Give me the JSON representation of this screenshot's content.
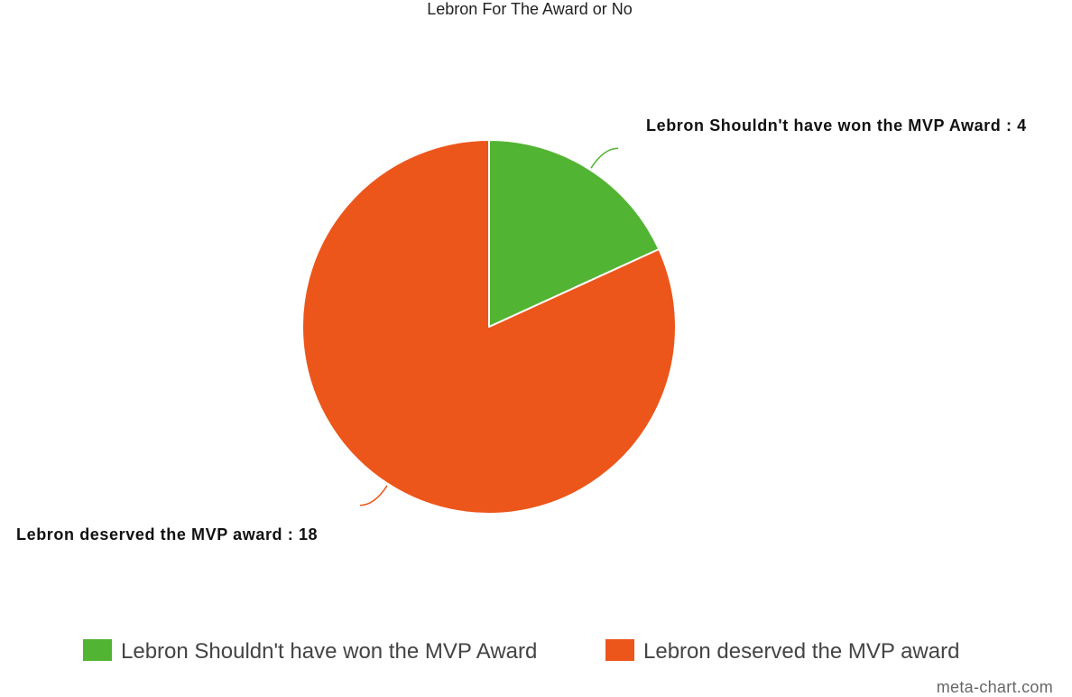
{
  "chart_data": {
    "type": "pie",
    "title": "Lebron For The Award or No",
    "slices": [
      {
        "name": "Lebron Shouldn't have won the MVP Award",
        "value": 4,
        "color": "#52b433",
        "data_label": "Lebron Shouldn't have won the MVP Award : 4"
      },
      {
        "name": "Lebron deserved the MVP award",
        "value": 18,
        "color": "#ec561b",
        "data_label": "Lebron deserved the MVP award : 18"
      }
    ],
    "legend": {
      "position": "bottom",
      "entries": [
        "Lebron Shouldn't have won the MVP Award",
        "Lebron deserved the MVP award"
      ]
    }
  },
  "credit": "meta-chart.com"
}
